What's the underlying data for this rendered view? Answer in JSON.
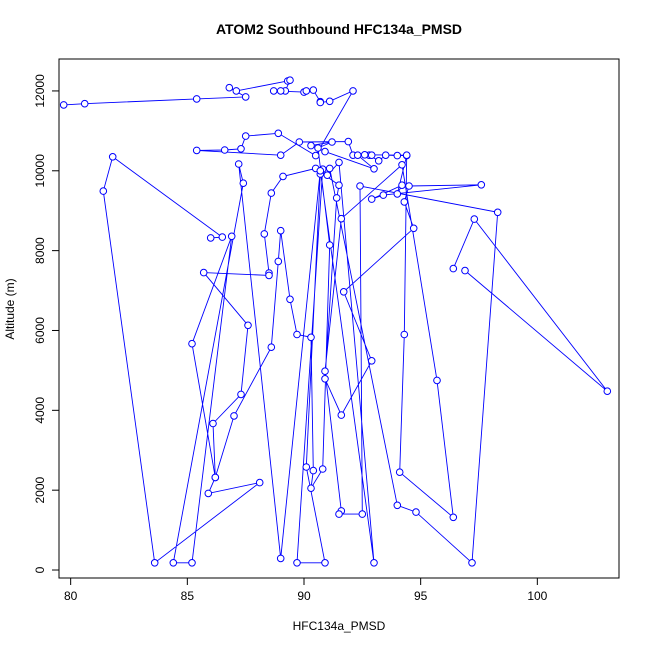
{
  "chart_data": {
    "type": "line",
    "title": "ATOM2 Southbound HFC134a_PMSD",
    "xlabel": "HFC134a_PMSD",
    "ylabel": "Altitude (m)",
    "xlim": [
      79.5,
      103.5
    ],
    "ylim": [
      -200,
      12800
    ],
    "xticks": [
      80,
      85,
      90,
      95,
      100
    ],
    "yticks": [
      0,
      2000,
      4000,
      6000,
      8000,
      10000,
      12000
    ],
    "series": [
      {
        "color": "#0000ff",
        "marker": "open-circle",
        "points": [
          [
            79.7,
            11650
          ],
          [
            80.6,
            11680
          ],
          [
            85.4,
            11800
          ],
          [
            87.5,
            11850
          ],
          [
            86.8,
            12080
          ],
          [
            87.1,
            12000
          ],
          [
            89.3,
            12250
          ],
          [
            89.4,
            12270
          ],
          [
            89.2,
            12000
          ],
          [
            89.0,
            12000
          ],
          [
            88.7,
            12000
          ],
          [
            90.0,
            11970
          ],
          [
            90.1,
            12000
          ],
          [
            90.4,
            12020
          ],
          [
            90.7,
            11730
          ],
          [
            90.7,
            11710
          ],
          [
            91.1,
            11740
          ],
          [
            92.1,
            12000
          ],
          [
            90.5,
            10380
          ],
          [
            88.9,
            10940
          ],
          [
            87.5,
            10870
          ],
          [
            87.3,
            10550
          ],
          [
            86.6,
            10520
          ],
          [
            85.4,
            10510
          ],
          [
            89.0,
            10390
          ],
          [
            89.8,
            10720
          ],
          [
            91.9,
            10730
          ],
          [
            92.1,
            10390
          ],
          [
            92.8,
            10390
          ],
          [
            93.2,
            10250
          ],
          [
            93.5,
            10390
          ],
          [
            94.0,
            10380
          ],
          [
            94.4,
            10380
          ],
          [
            94.0,
            9420
          ],
          [
            94.2,
            9640
          ],
          [
            92.9,
            9290
          ],
          [
            93.4,
            9390
          ],
          [
            97.6,
            9650
          ],
          [
            94.5,
            9620
          ],
          [
            94.3,
            9220
          ],
          [
            94.7,
            8560
          ],
          [
            91.7,
            6970
          ],
          [
            92.9,
            5240
          ],
          [
            91.6,
            3880
          ],
          [
            90.9,
            4790
          ],
          [
            91.4,
            9320
          ],
          [
            91.5,
            9640
          ],
          [
            90.5,
            10060
          ],
          [
            89.1,
            9860
          ],
          [
            88.6,
            9440
          ],
          [
            88.3,
            8420
          ],
          [
            88.5,
            7440
          ],
          [
            88.5,
            7380
          ],
          [
            85.7,
            7450
          ],
          [
            87.6,
            6130
          ],
          [
            87.3,
            4400
          ],
          [
            86.1,
            3670
          ],
          [
            86.2,
            2320
          ],
          [
            87.0,
            3860
          ],
          [
            88.6,
            5580
          ],
          [
            88.9,
            7730
          ],
          [
            89.0,
            8500
          ],
          [
            89.4,
            6780
          ],
          [
            89.7,
            5900
          ],
          [
            90.3,
            5830
          ],
          [
            90.4,
            2490
          ],
          [
            90.3,
            2050
          ],
          [
            90.8,
            2530
          ],
          [
            91.1,
            8140
          ],
          [
            90.6,
            10570
          ],
          [
            91.2,
            10720
          ],
          [
            90.3,
            10630
          ],
          [
            90.9,
            10480
          ],
          [
            93.0,
            10050
          ],
          [
            92.3,
            10390
          ],
          [
            92.9,
            10390
          ],
          [
            92.6,
            10400
          ],
          [
            94.4,
            10390
          ],
          [
            94.3,
            5900
          ],
          [
            94.1,
            2450
          ],
          [
            96.4,
            1320
          ],
          [
            95.7,
            4750
          ],
          [
            94.2,
            10150
          ],
          [
            91.6,
            8800
          ],
          [
            90.9,
            4980
          ],
          [
            91.6,
            1480
          ],
          [
            91.5,
            1400
          ],
          [
            92.5,
            1400
          ],
          [
            92.4,
            9620
          ],
          [
            98.3,
            8960
          ],
          [
            97.2,
            180
          ],
          [
            94.8,
            1450
          ],
          [
            94.0,
            1620
          ],
          [
            91.1,
            10060
          ],
          [
            90.8,
            10040
          ],
          [
            89.7,
            180
          ],
          [
            90.9,
            180
          ],
          [
            90.1,
            2580
          ],
          [
            90.7,
            9920
          ],
          [
            91.0,
            9890
          ],
          [
            91.5,
            10210
          ],
          [
            93.0,
            180
          ],
          [
            90.7,
            10000
          ],
          [
            89.0,
            290
          ],
          [
            87.2,
            10170
          ],
          [
            87.4,
            9690
          ],
          [
            84.4,
            180
          ],
          [
            85.2,
            180
          ],
          [
            86.9,
            8360
          ],
          [
            85.2,
            5670
          ],
          [
            86.2,
            2320
          ],
          [
            85.9,
            1920
          ],
          [
            88.1,
            2190
          ],
          [
            83.6,
            180
          ],
          [
            81.4,
            9490
          ],
          [
            81.8,
            10350
          ],
          [
            86.5,
            8340
          ],
          [
            86.0,
            8320
          ]
        ]
      },
      {
        "color": "#0000ff",
        "marker": "open-circle",
        "points": [
          [
            96.4,
            7550
          ],
          [
            97.3,
            8790
          ],
          [
            103.0,
            4480
          ],
          [
            96.9,
            7500
          ]
        ]
      }
    ],
    "grid": false,
    "legend": "none"
  }
}
